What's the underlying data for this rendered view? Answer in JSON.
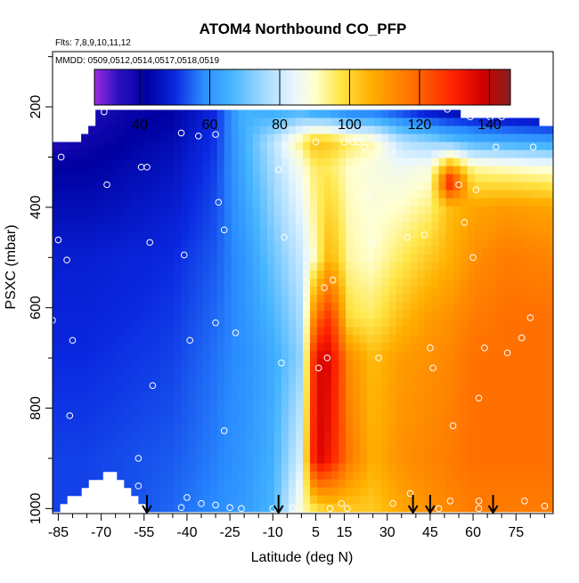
{
  "chart_data": {
    "type": "heatmap",
    "title": "ATOM4 Northbound CO_PFP",
    "subtitle_flights": "Flts: 7,8,9,10,11,12",
    "subtitle_dates": "MMDD: 0509,0512,0514,0517,0518,0519",
    "xlabel": "Latitude (deg N)",
    "ylabel": "PSXC (mbar)",
    "xlim": [
      -87,
      88
    ],
    "ylim": [
      1010,
      90
    ],
    "y_reversed": true,
    "xticks": [
      -85,
      -70,
      -55,
      -40,
      -25,
      -10,
      5,
      15,
      30,
      45,
      60,
      75
    ],
    "yticks": [
      200,
      400,
      600,
      800,
      1000
    ],
    "colorbar": {
      "min": 27,
      "max": 146,
      "ticks": [
        40,
        60,
        80,
        100,
        120,
        140
      ],
      "stops": [
        {
          "v": 27,
          "c": "#9a2be0"
        },
        {
          "v": 34,
          "c": "#2a10c0"
        },
        {
          "v": 42,
          "c": "#0000a0"
        },
        {
          "v": 50,
          "c": "#0a28e0"
        },
        {
          "v": 58,
          "c": "#2a8cff"
        },
        {
          "v": 66,
          "c": "#44b4ff"
        },
        {
          "v": 76,
          "c": "#a8dcff"
        },
        {
          "v": 84,
          "c": "#e8f6ff"
        },
        {
          "v": 90,
          "c": "#ffffd0"
        },
        {
          "v": 97,
          "c": "#ffe74a"
        },
        {
          "v": 106,
          "c": "#ffb000"
        },
        {
          "v": 118,
          "c": "#ff7000"
        },
        {
          "v": 130,
          "c": "#ff2000"
        },
        {
          "v": 138,
          "c": "#d00000"
        },
        {
          "v": 146,
          "c": "#882020"
        }
      ]
    },
    "surface_ps": [
      [
        -87,
        1010
      ],
      [
        -83,
        985
      ],
      [
        -78,
        965
      ],
      [
        -72,
        945
      ],
      [
        -66,
        925
      ],
      [
        -61,
        950
      ],
      [
        -56,
        985
      ],
      [
        -53,
        1002
      ],
      [
        -52,
        1010
      ]
    ],
    "curtain_top_ps": [
      [
        -87,
        270
      ],
      [
        -75,
        260
      ],
      [
        -70,
        205
      ],
      [
        -55,
        205
      ],
      [
        -30,
        200
      ],
      [
        -10,
        200
      ],
      [
        10,
        200
      ],
      [
        25,
        200
      ],
      [
        40,
        200
      ],
      [
        55,
        200
      ],
      [
        57,
        225
      ],
      [
        82,
        225
      ],
      [
        82,
        240
      ],
      [
        88,
        240
      ]
    ],
    "profiles": [
      {
        "lat": -87,
        "values": [
          [
            200,
            27
          ],
          [
            320,
            42
          ],
          [
            500,
            48
          ],
          [
            700,
            50
          ],
          [
            900,
            52
          ],
          [
            1000,
            52
          ]
        ]
      },
      {
        "lat": -75,
        "values": [
          [
            200,
            36
          ],
          [
            320,
            42
          ],
          [
            500,
            48
          ],
          [
            700,
            50
          ],
          [
            900,
            52
          ],
          [
            1000,
            52
          ]
        ]
      },
      {
        "lat": -60,
        "values": [
          [
            200,
            40
          ],
          [
            320,
            44
          ],
          [
            500,
            49
          ],
          [
            700,
            51
          ],
          [
            900,
            53
          ],
          [
            1000,
            53
          ]
        ]
      },
      {
        "lat": -45,
        "values": [
          [
            200,
            42
          ],
          [
            320,
            46
          ],
          [
            500,
            50
          ],
          [
            700,
            52
          ],
          [
            900,
            54
          ],
          [
            1000,
            55
          ]
        ]
      },
      {
        "lat": -30,
        "values": [
          [
            200,
            50
          ],
          [
            320,
            52
          ],
          [
            500,
            54
          ],
          [
            700,
            56
          ],
          [
            900,
            57
          ],
          [
            1000,
            58
          ]
        ]
      },
      {
        "lat": -20,
        "values": [
          [
            200,
            66
          ],
          [
            320,
            64
          ],
          [
            500,
            60
          ],
          [
            700,
            59
          ],
          [
            900,
            60
          ],
          [
            1000,
            61
          ]
        ]
      },
      {
        "lat": -10,
        "values": [
          [
            200,
            62
          ],
          [
            270,
            78
          ],
          [
            320,
            76
          ],
          [
            500,
            70
          ],
          [
            700,
            64
          ],
          [
            900,
            65
          ],
          [
            1000,
            66
          ]
        ]
      },
      {
        "lat": 0,
        "values": [
          [
            200,
            62
          ],
          [
            270,
            95
          ],
          [
            320,
            88
          ],
          [
            500,
            80
          ],
          [
            700,
            74
          ],
          [
            900,
            82
          ],
          [
            1000,
            90
          ]
        ]
      },
      {
        "lat": 5,
        "values": [
          [
            200,
            55
          ],
          [
            270,
            104
          ],
          [
            320,
            96
          ],
          [
            500,
            92
          ],
          [
            620,
            118
          ],
          [
            700,
            136
          ],
          [
            900,
            138
          ],
          [
            1000,
            98
          ]
        ]
      },
      {
        "lat": 10,
        "values": [
          [
            200,
            55
          ],
          [
            270,
            102
          ],
          [
            320,
            96
          ],
          [
            500,
            106
          ],
          [
            620,
            128
          ],
          [
            700,
            136
          ],
          [
            900,
            132
          ],
          [
            1000,
            102
          ]
        ]
      },
      {
        "lat": 17,
        "values": [
          [
            200,
            50
          ],
          [
            270,
            96
          ],
          [
            320,
            90
          ],
          [
            500,
            92
          ],
          [
            620,
            98
          ],
          [
            700,
            112
          ],
          [
            900,
            116
          ],
          [
            1000,
            102
          ]
        ]
      },
      {
        "lat": 25,
        "values": [
          [
            200,
            50
          ],
          [
            270,
            92
          ],
          [
            320,
            88
          ],
          [
            500,
            90
          ],
          [
            620,
            96
          ],
          [
            700,
            104
          ],
          [
            900,
            106
          ],
          [
            1000,
            102
          ]
        ]
      },
      {
        "lat": 35,
        "values": [
          [
            200,
            48
          ],
          [
            270,
            78
          ],
          [
            320,
            86
          ],
          [
            500,
            96
          ],
          [
            620,
            104
          ],
          [
            700,
            110
          ],
          [
            900,
            112
          ],
          [
            1000,
            108
          ]
        ]
      },
      {
        "lat": 45,
        "values": [
          [
            200,
            42
          ],
          [
            270,
            74
          ],
          [
            320,
            88
          ],
          [
            500,
            102
          ],
          [
            620,
            110
          ],
          [
            700,
            112
          ],
          [
            900,
            114
          ],
          [
            1000,
            112
          ]
        ]
      },
      {
        "lat": 52,
        "values": [
          [
            200,
            40
          ],
          [
            270,
            70
          ],
          [
            350,
            132
          ],
          [
            400,
            104
          ],
          [
            500,
            106
          ],
          [
            620,
            112
          ],
          [
            700,
            114
          ],
          [
            900,
            116
          ],
          [
            1000,
            114
          ]
        ]
      },
      {
        "lat": 60,
        "values": [
          [
            200,
            40
          ],
          [
            270,
            66
          ],
          [
            320,
            92
          ],
          [
            400,
            108
          ],
          [
            500,
            112
          ],
          [
            620,
            116
          ],
          [
            700,
            118
          ],
          [
            900,
            118
          ],
          [
            1000,
            116
          ]
        ]
      },
      {
        "lat": 72,
        "values": [
          [
            200,
            38
          ],
          [
            270,
            64
          ],
          [
            320,
            90
          ],
          [
            400,
            110
          ],
          [
            500,
            116
          ],
          [
            620,
            118
          ],
          [
            700,
            118
          ],
          [
            900,
            118
          ],
          [
            1000,
            116
          ]
        ]
      },
      {
        "lat": 88,
        "values": [
          [
            200,
            36
          ],
          [
            270,
            62
          ],
          [
            320,
            88
          ],
          [
            400,
            108
          ],
          [
            500,
            114
          ],
          [
            620,
            118
          ],
          [
            700,
            118
          ],
          [
            900,
            118
          ],
          [
            1000,
            116
          ]
        ]
      }
    ],
    "sample_points": [
      [
        -86,
        215
      ],
      [
        -69,
        210
      ],
      [
        -84,
        300
      ],
      [
        -68,
        355
      ],
      [
        -56,
        320
      ],
      [
        -54,
        320
      ],
      [
        -42,
        252
      ],
      [
        -36,
        258
      ],
      [
        -30,
        255
      ],
      [
        -53,
        470
      ],
      [
        -41,
        495
      ],
      [
        -85,
        465
      ],
      [
        -82,
        505
      ],
      [
        -29,
        390
      ],
      [
        -27,
        445
      ],
      [
        -87,
        625
      ],
      [
        -80,
        665
      ],
      [
        -52,
        755
      ],
      [
        -39,
        665
      ],
      [
        -30,
        630
      ],
      [
        -23,
        650
      ],
      [
        -27,
        845
      ],
      [
        -81,
        815
      ],
      [
        -57,
        900
      ],
      [
        -57,
        955
      ],
      [
        -40,
        978
      ],
      [
        -42,
        998
      ],
      [
        -35,
        990
      ],
      [
        -30,
        993
      ],
      [
        -25,
        998
      ],
      [
        -21,
        1000
      ],
      [
        -8,
        325
      ],
      [
        -6,
        460
      ],
      [
        -7,
        710
      ],
      [
        -10,
        1000
      ],
      [
        -3,
        1000
      ],
      [
        4,
        490
      ],
      [
        5,
        270
      ],
      [
        6,
        720
      ],
      [
        8,
        560
      ],
      [
        9,
        700
      ],
      [
        11,
        545
      ],
      [
        10,
        1000
      ],
      [
        15,
        270
      ],
      [
        14,
        990
      ],
      [
        16,
        1000
      ],
      [
        18,
        270
      ],
      [
        20,
        270
      ],
      [
        22,
        280
      ],
      [
        23,
        375
      ],
      [
        25,
        470
      ],
      [
        27,
        700
      ],
      [
        32,
        990
      ],
      [
        37,
        460
      ],
      [
        38,
        970
      ],
      [
        43,
        455
      ],
      [
        45,
        680
      ],
      [
        46,
        720
      ],
      [
        48,
        1000
      ],
      [
        51,
        205
      ],
      [
        52,
        985
      ],
      [
        55,
        355
      ],
      [
        59,
        220
      ],
      [
        61,
        365
      ],
      [
        57,
        430
      ],
      [
        53,
        835
      ],
      [
        60,
        500
      ],
      [
        62,
        780
      ],
      [
        64,
        680
      ],
      [
        62,
        985
      ],
      [
        62,
        1000
      ],
      [
        66,
        220
      ],
      [
        68,
        280
      ],
      [
        70,
        220
      ],
      [
        72,
        690
      ],
      [
        77,
        660
      ],
      [
        78,
        985
      ],
      [
        81,
        280
      ],
      [
        80,
        620
      ],
      [
        85,
        995
      ]
    ],
    "arrows_lat": [
      -54,
      -8,
      39,
      45,
      67
    ]
  }
}
